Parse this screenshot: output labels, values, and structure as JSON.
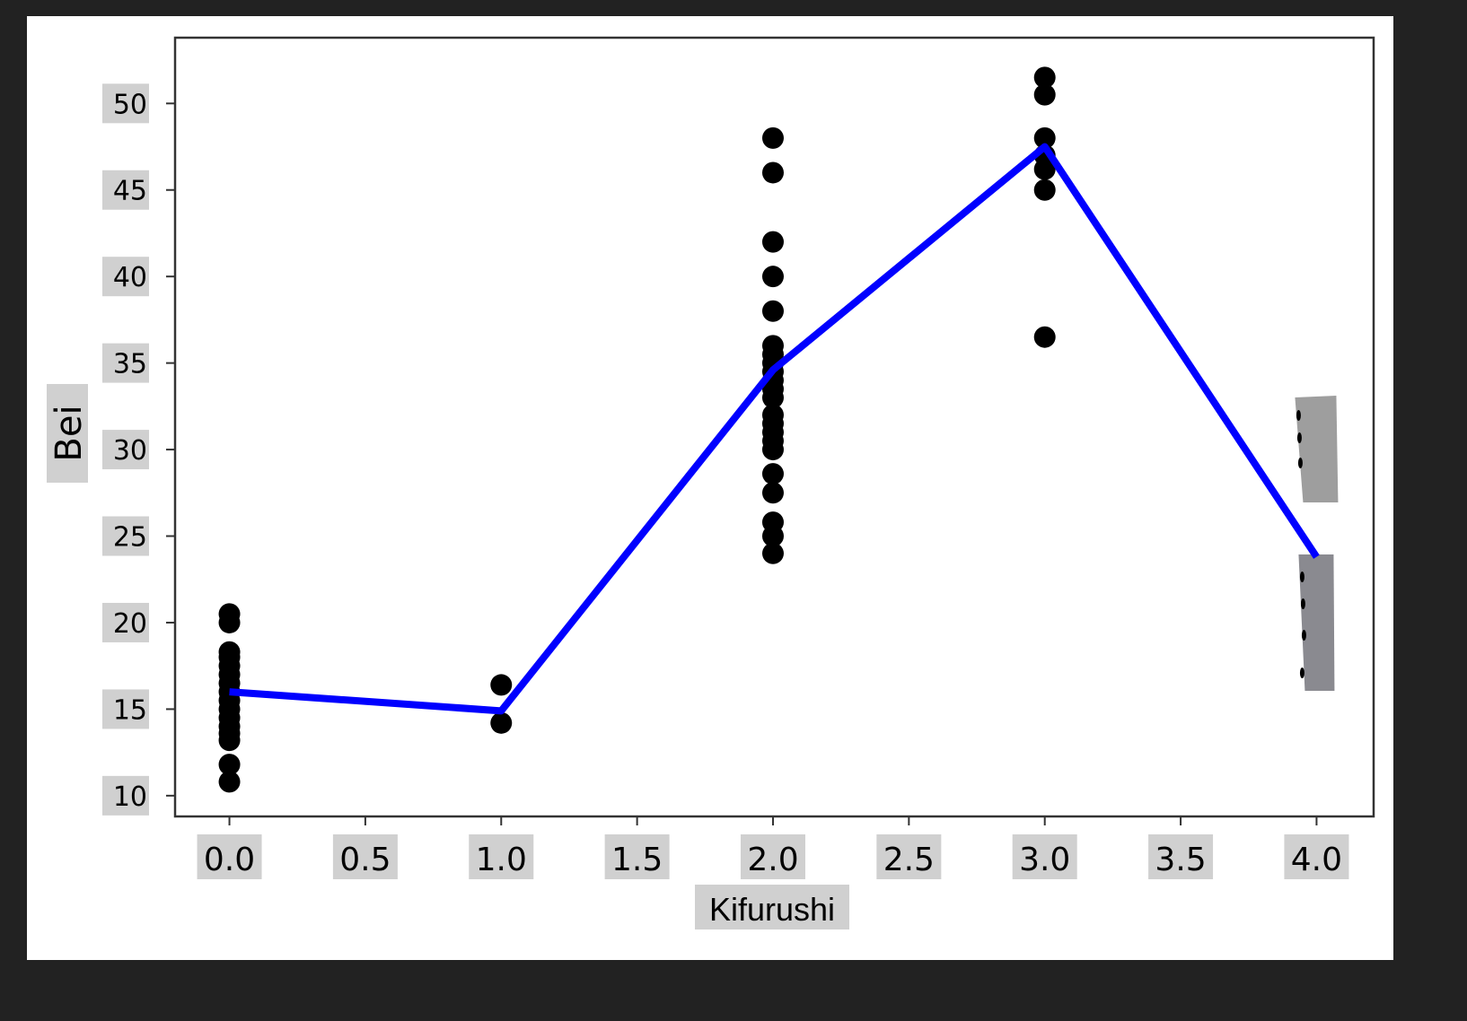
{
  "chart_data": {
    "type": "scatter",
    "title": "",
    "xlabel": "Kifurushi",
    "ylabel": "Bei",
    "xlim": [
      -0.2,
      4.21
    ],
    "ylim": [
      8.8,
      53.8
    ],
    "grid": false,
    "xticks": [
      "0.0",
      "0.5",
      "1.0",
      "1.5",
      "2.0",
      "2.5",
      "3.0",
      "3.5",
      "4.0"
    ],
    "xtick_values": [
      0,
      0.5,
      1,
      1.5,
      2,
      2.5,
      3,
      3.5,
      4
    ],
    "yticks": [
      "10",
      "15",
      "20",
      "25",
      "30",
      "35",
      "40",
      "45",
      "50"
    ],
    "ytick_values": [
      10,
      15,
      20,
      25,
      30,
      35,
      40,
      45,
      50
    ],
    "scatter": {
      "color": "#000000",
      "points": [
        [
          0,
          10.8
        ],
        [
          0,
          11.8
        ],
        [
          0,
          13.2
        ],
        [
          0,
          13.6
        ],
        [
          0,
          14
        ],
        [
          0,
          14.5
        ],
        [
          0,
          15
        ],
        [
          0,
          15.5
        ],
        [
          0,
          16
        ],
        [
          0,
          16.5
        ],
        [
          0,
          17
        ],
        [
          0,
          17.5
        ],
        [
          0,
          18
        ],
        [
          0,
          18.3
        ],
        [
          0,
          20
        ],
        [
          0,
          20.5
        ],
        [
          1,
          14.2
        ],
        [
          1,
          16.4
        ],
        [
          2,
          24
        ],
        [
          2,
          25
        ],
        [
          2,
          25.8
        ],
        [
          2,
          27.5
        ],
        [
          2,
          28.6
        ],
        [
          2,
          30
        ],
        [
          2,
          30.5
        ],
        [
          2,
          31
        ],
        [
          2,
          31.5
        ],
        [
          2,
          32
        ],
        [
          2,
          33
        ],
        [
          2,
          33.5
        ],
        [
          2,
          34
        ],
        [
          2,
          34.5
        ],
        [
          2,
          35
        ],
        [
          2,
          35.5
        ],
        [
          2,
          36
        ],
        [
          2,
          38
        ],
        [
          2,
          40
        ],
        [
          2,
          42
        ],
        [
          2,
          46
        ],
        [
          2,
          48
        ],
        [
          3,
          36.5
        ],
        [
          3,
          45
        ],
        [
          3,
          46.2
        ],
        [
          3,
          47
        ],
        [
          3,
          48
        ],
        [
          3,
          50.5
        ],
        [
          3,
          51.5
        ]
      ]
    },
    "line": {
      "color": "#0000ff",
      "x": [
        0,
        1,
        2,
        3,
        4
      ],
      "y": [
        16,
        14.9,
        34.6,
        47.5,
        23.8
      ]
    },
    "artifacts_color": [
      "#9e9e9e",
      "#8a8a90"
    ],
    "tick_label_bg": "#d0d0d0"
  }
}
